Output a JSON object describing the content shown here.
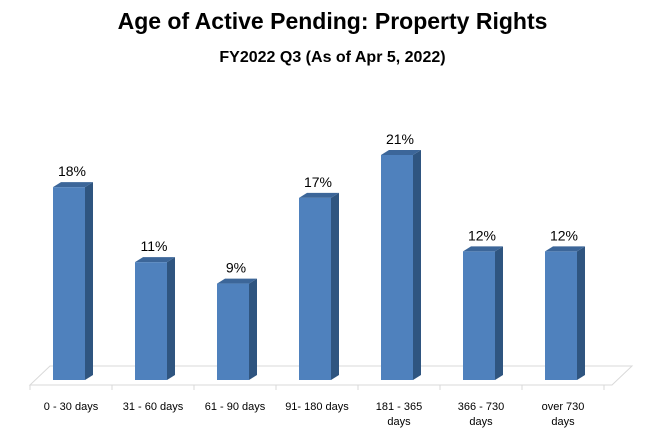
{
  "chart_data": {
    "type": "bar",
    "title": "Age of Active Pending: Property Rights",
    "subtitle": "FY2022 Q3 (As of Apr 5, 2022)",
    "categories": [
      "0 - 30 days",
      "31 - 60 days",
      "61 - 90 days",
      "91- 180 days",
      "181 - 365 days",
      "366 - 730 days",
      "over 730 days"
    ],
    "category_lines": [
      [
        "0 - 30 days"
      ],
      [
        "31 - 60 days"
      ],
      [
        "61 - 90 days"
      ],
      [
        "91- 180 days"
      ],
      [
        "181 - 365",
        "days"
      ],
      [
        "366 - 730",
        "days"
      ],
      [
        "over 730",
        "days"
      ]
    ],
    "values": [
      18,
      11,
      9,
      17,
      21,
      12,
      12
    ],
    "data_labels": [
      "18%",
      "11%",
      "9%",
      "17%",
      "21%",
      "12%",
      "12%"
    ],
    "unit": "%",
    "ylim": [
      0,
      21
    ],
    "grid": false,
    "legend": "none",
    "style": "3d-column",
    "colors": {
      "bar_front": "#4F81BD",
      "bar_side": "#2F5580",
      "bar_top": "#3C6699",
      "floor": "#D9D9D9"
    }
  }
}
